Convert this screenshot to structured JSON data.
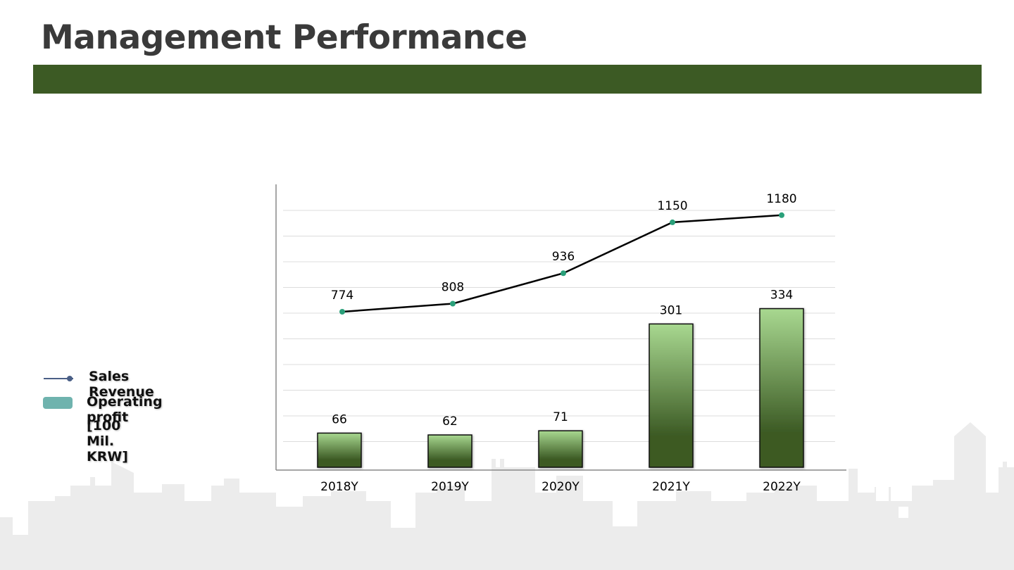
{
  "page": {
    "title": "Management Performance",
    "accent_color": "#3c5a24"
  },
  "legend": {
    "line_label": "Sales Revenue",
    "bar_label": "Operating profit",
    "unit_label": "[100 Mil. KRW]",
    "line_color": "#4a5f86",
    "bar_color": "#6fb3ae"
  },
  "chart_data": {
    "type": "bar",
    "categories": [
      "2018Y",
      "2019Y",
      "2020Y",
      "2021Y",
      "2022Y"
    ],
    "series": [
      {
        "name": "Operating profit",
        "type": "bar",
        "values": [
          66,
          62,
          71,
          301,
          334
        ]
      },
      {
        "name": "Sales Revenue",
        "type": "line",
        "values": [
          774,
          808,
          936,
          1150,
          1180
        ]
      }
    ],
    "unit": "[100 Mil. KRW]",
    "grid": true,
    "legend_position": "left",
    "colors": {
      "bar_top": "#a8d890",
      "bar_bottom": "#3c5a24",
      "line": "#000000",
      "line_marker": "#2aa07a"
    }
  }
}
